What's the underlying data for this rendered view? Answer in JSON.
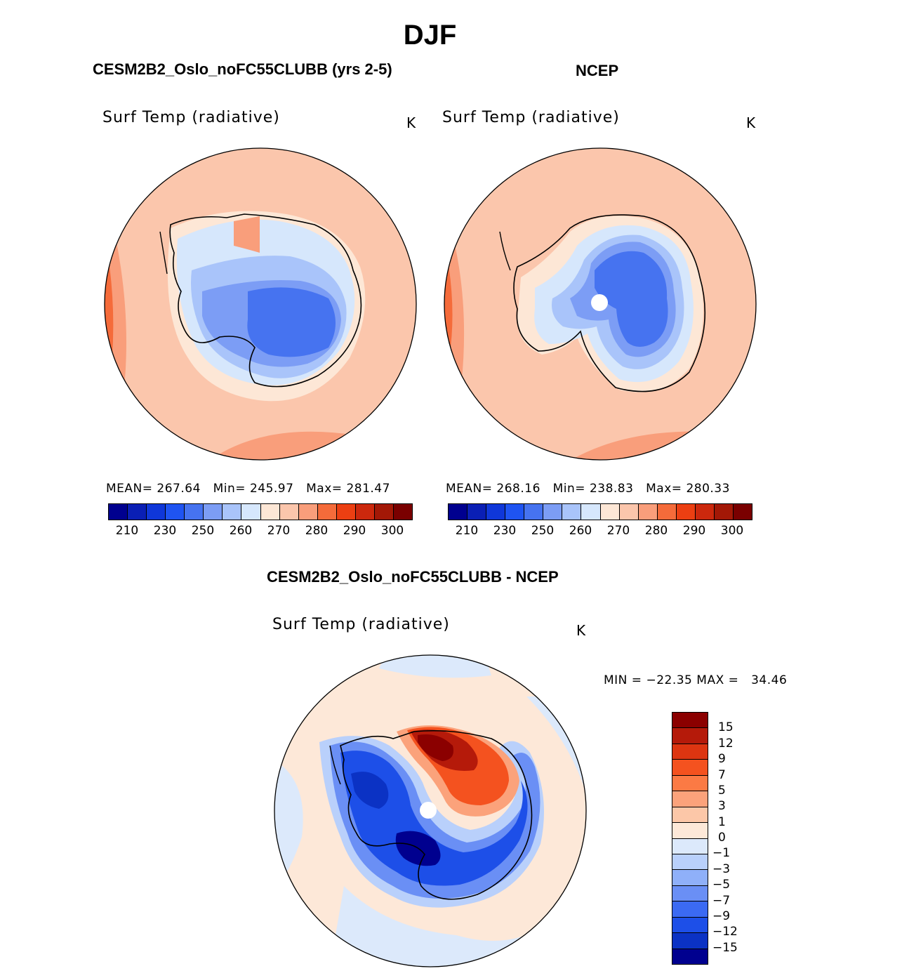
{
  "figure": {
    "title": "DJF"
  },
  "panel_model": {
    "case_title": "CESM2B2_Oslo_noFC55CLUBB (yrs 2-5)",
    "variable": "Surf Temp (radiative)",
    "units": "K",
    "stats": {
      "mean_label": "MEAN=",
      "mean": "267.64",
      "min_label": "Min=",
      "min": "245.97",
      "max_label": "Max=",
      "max": "281.47"
    }
  },
  "panel_obs": {
    "case_title": "NCEP",
    "variable": "Surf Temp (radiative)",
    "units": "K",
    "stats": {
      "mean_label": "MEAN=",
      "mean": "268.16",
      "min_label": "Min=",
      "min": "238.83",
      "max_label": "Max=",
      "max": "280.33"
    }
  },
  "panel_diff": {
    "case_title": "CESM2B2_Oslo_noFC55CLUBB - NCEP",
    "variable": "Surf Temp (radiative)",
    "units": "K",
    "stats": {
      "min_label": "MIN =",
      "min": "−22.35",
      "max_label": "MAX =",
      "max": "34.46"
    }
  },
  "colorbar_abs": {
    "colors": [
      "#00008f",
      "#0a1fb5",
      "#0f37d9",
      "#1f54f2",
      "#4673f0",
      "#7c9df5",
      "#a9c4fa",
      "#d6e7fc",
      "#fde7d6",
      "#fbc6ac",
      "#f99e7b",
      "#f56b3a",
      "#ec3f12",
      "#cc280d",
      "#a31806",
      "#7a0000"
    ],
    "ticks": [
      "210",
      "230",
      "250",
      "260",
      "270",
      "280",
      "290",
      "300"
    ]
  },
  "colorbar_diff": {
    "colors": [
      "#8b0000",
      "#b51a0a",
      "#dd3511",
      "#f4521f",
      "#fb7a44",
      "#fba27b",
      "#fcc7a8",
      "#fde8d8",
      "#dce9fb",
      "#b9d0fb",
      "#8fb0f9",
      "#6a8ff5",
      "#3b6af3",
      "#1d4fe8",
      "#0b32c4",
      "#00008f"
    ],
    "ticks": [
      "15",
      "12",
      "9",
      "7",
      "5",
      "3",
      "1",
      "0",
      "−1",
      "−3",
      "−5",
      "−7",
      "−9",
      "−12",
      "−15"
    ]
  },
  "colors": {
    "land_outline": "#000000",
    "pole_mask": "#ffffff"
  }
}
